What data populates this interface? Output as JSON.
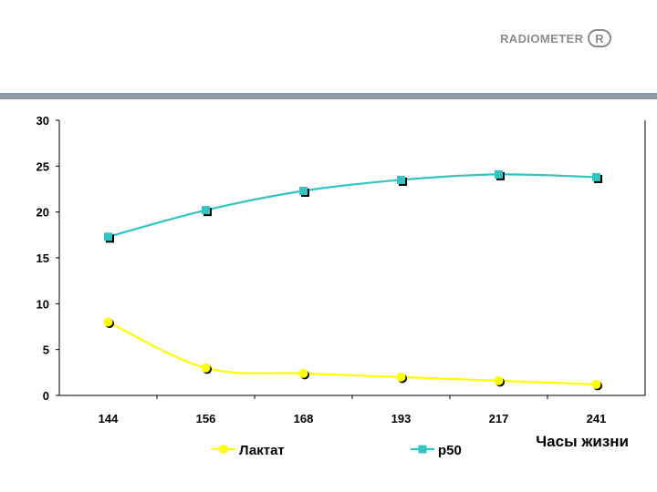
{
  "brand": {
    "logo_text": "RADIOMETER",
    "logo_mark": "R",
    "logo_color": "#8a8c90",
    "bar_color": "#8e98a6"
  },
  "chart_data": {
    "type": "line",
    "title": "",
    "xlabel": "Часы жизни",
    "ylabel": "",
    "categories": [
      "144",
      "156",
      "168",
      "193",
      "217",
      "241"
    ],
    "ylim": [
      0,
      30
    ],
    "yticks": [
      0,
      5,
      10,
      15,
      20,
      25,
      30
    ],
    "grid": false,
    "legend_position": "bottom",
    "series": [
      {
        "name": "Лактат",
        "marker": "circle",
        "color": "#ffff00",
        "values": [
          8.0,
          3.0,
          2.4,
          2.0,
          1.6,
          1.2
        ]
      },
      {
        "name": "p50",
        "marker": "square",
        "color": "#33c4c4",
        "values": [
          17.3,
          20.2,
          22.3,
          23.5,
          24.1,
          23.8
        ]
      }
    ]
  }
}
